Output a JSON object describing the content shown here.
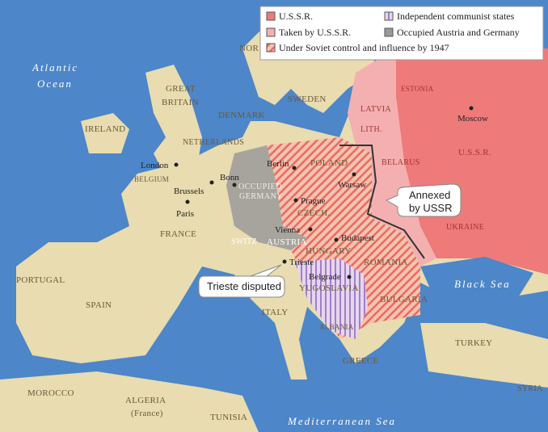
{
  "legend": [
    "U.S.S.R.",
    "Taken by U.S.S.R.",
    "Under Soviet control and influence by 1947",
    "Independent communist states",
    "Occupied Austria and Germany"
  ],
  "seas": {
    "atlantic": [
      "Atlantic",
      "Ocean"
    ],
    "black": "Black Sea",
    "mediterranean": "Mediterranean Sea"
  },
  "countries": {
    "great_britain": [
      "GREAT",
      "BRITAIN"
    ],
    "ireland": "IRELAND",
    "norway": "NOR",
    "sweden": "SWEDEN",
    "denmark": "DENMARK",
    "netherlands": "NETHERLANDS",
    "belgium": "BELGIUM",
    "occupied_germany": [
      "OCCUPIED",
      "GERMANY"
    ],
    "france": "FRANCE",
    "switz": "SWITZ",
    "austria": "AUSTRIA",
    "poland": "POLAND",
    "czech": "CZECH.",
    "hungary": "HUNGARY",
    "romania": "ROMANIA",
    "yugoslavia": "YUGOSLAVIA",
    "bulgaria": "BULGARIA",
    "albania": "ALBANIA",
    "greece": "GREECE",
    "italy": "ITALY",
    "spain": "SPAIN",
    "portugal": "PORTUGAL",
    "morocco": "MOROCCO",
    "algeria": [
      "ALGERIA",
      "(France)"
    ],
    "tunisia": "TUNISIA",
    "turkey": "TURKEY",
    "syria": "SYRIA",
    "estonia": "ESTONIA",
    "latvia": "LATVIA",
    "lith": "LITH.",
    "belarus": "BELARUS",
    "ukraine": "UKRAINE",
    "ussr": "U.S.S.R."
  },
  "cities": {
    "london": "London",
    "brussels": "Brussels",
    "paris": "Paris",
    "bonn": "Bonn",
    "berlin": "Berlin",
    "warsaw": "Warsaw",
    "prague": "Prague",
    "vienna": "Vienna",
    "budapest": "Budapest",
    "trieste": "Trieste",
    "belgrade": "Belgrade",
    "moscow": "Moscow"
  },
  "callouts": {
    "annexed": [
      "Annexed",
      "by USSR"
    ],
    "trieste": "Trieste disputed"
  }
}
